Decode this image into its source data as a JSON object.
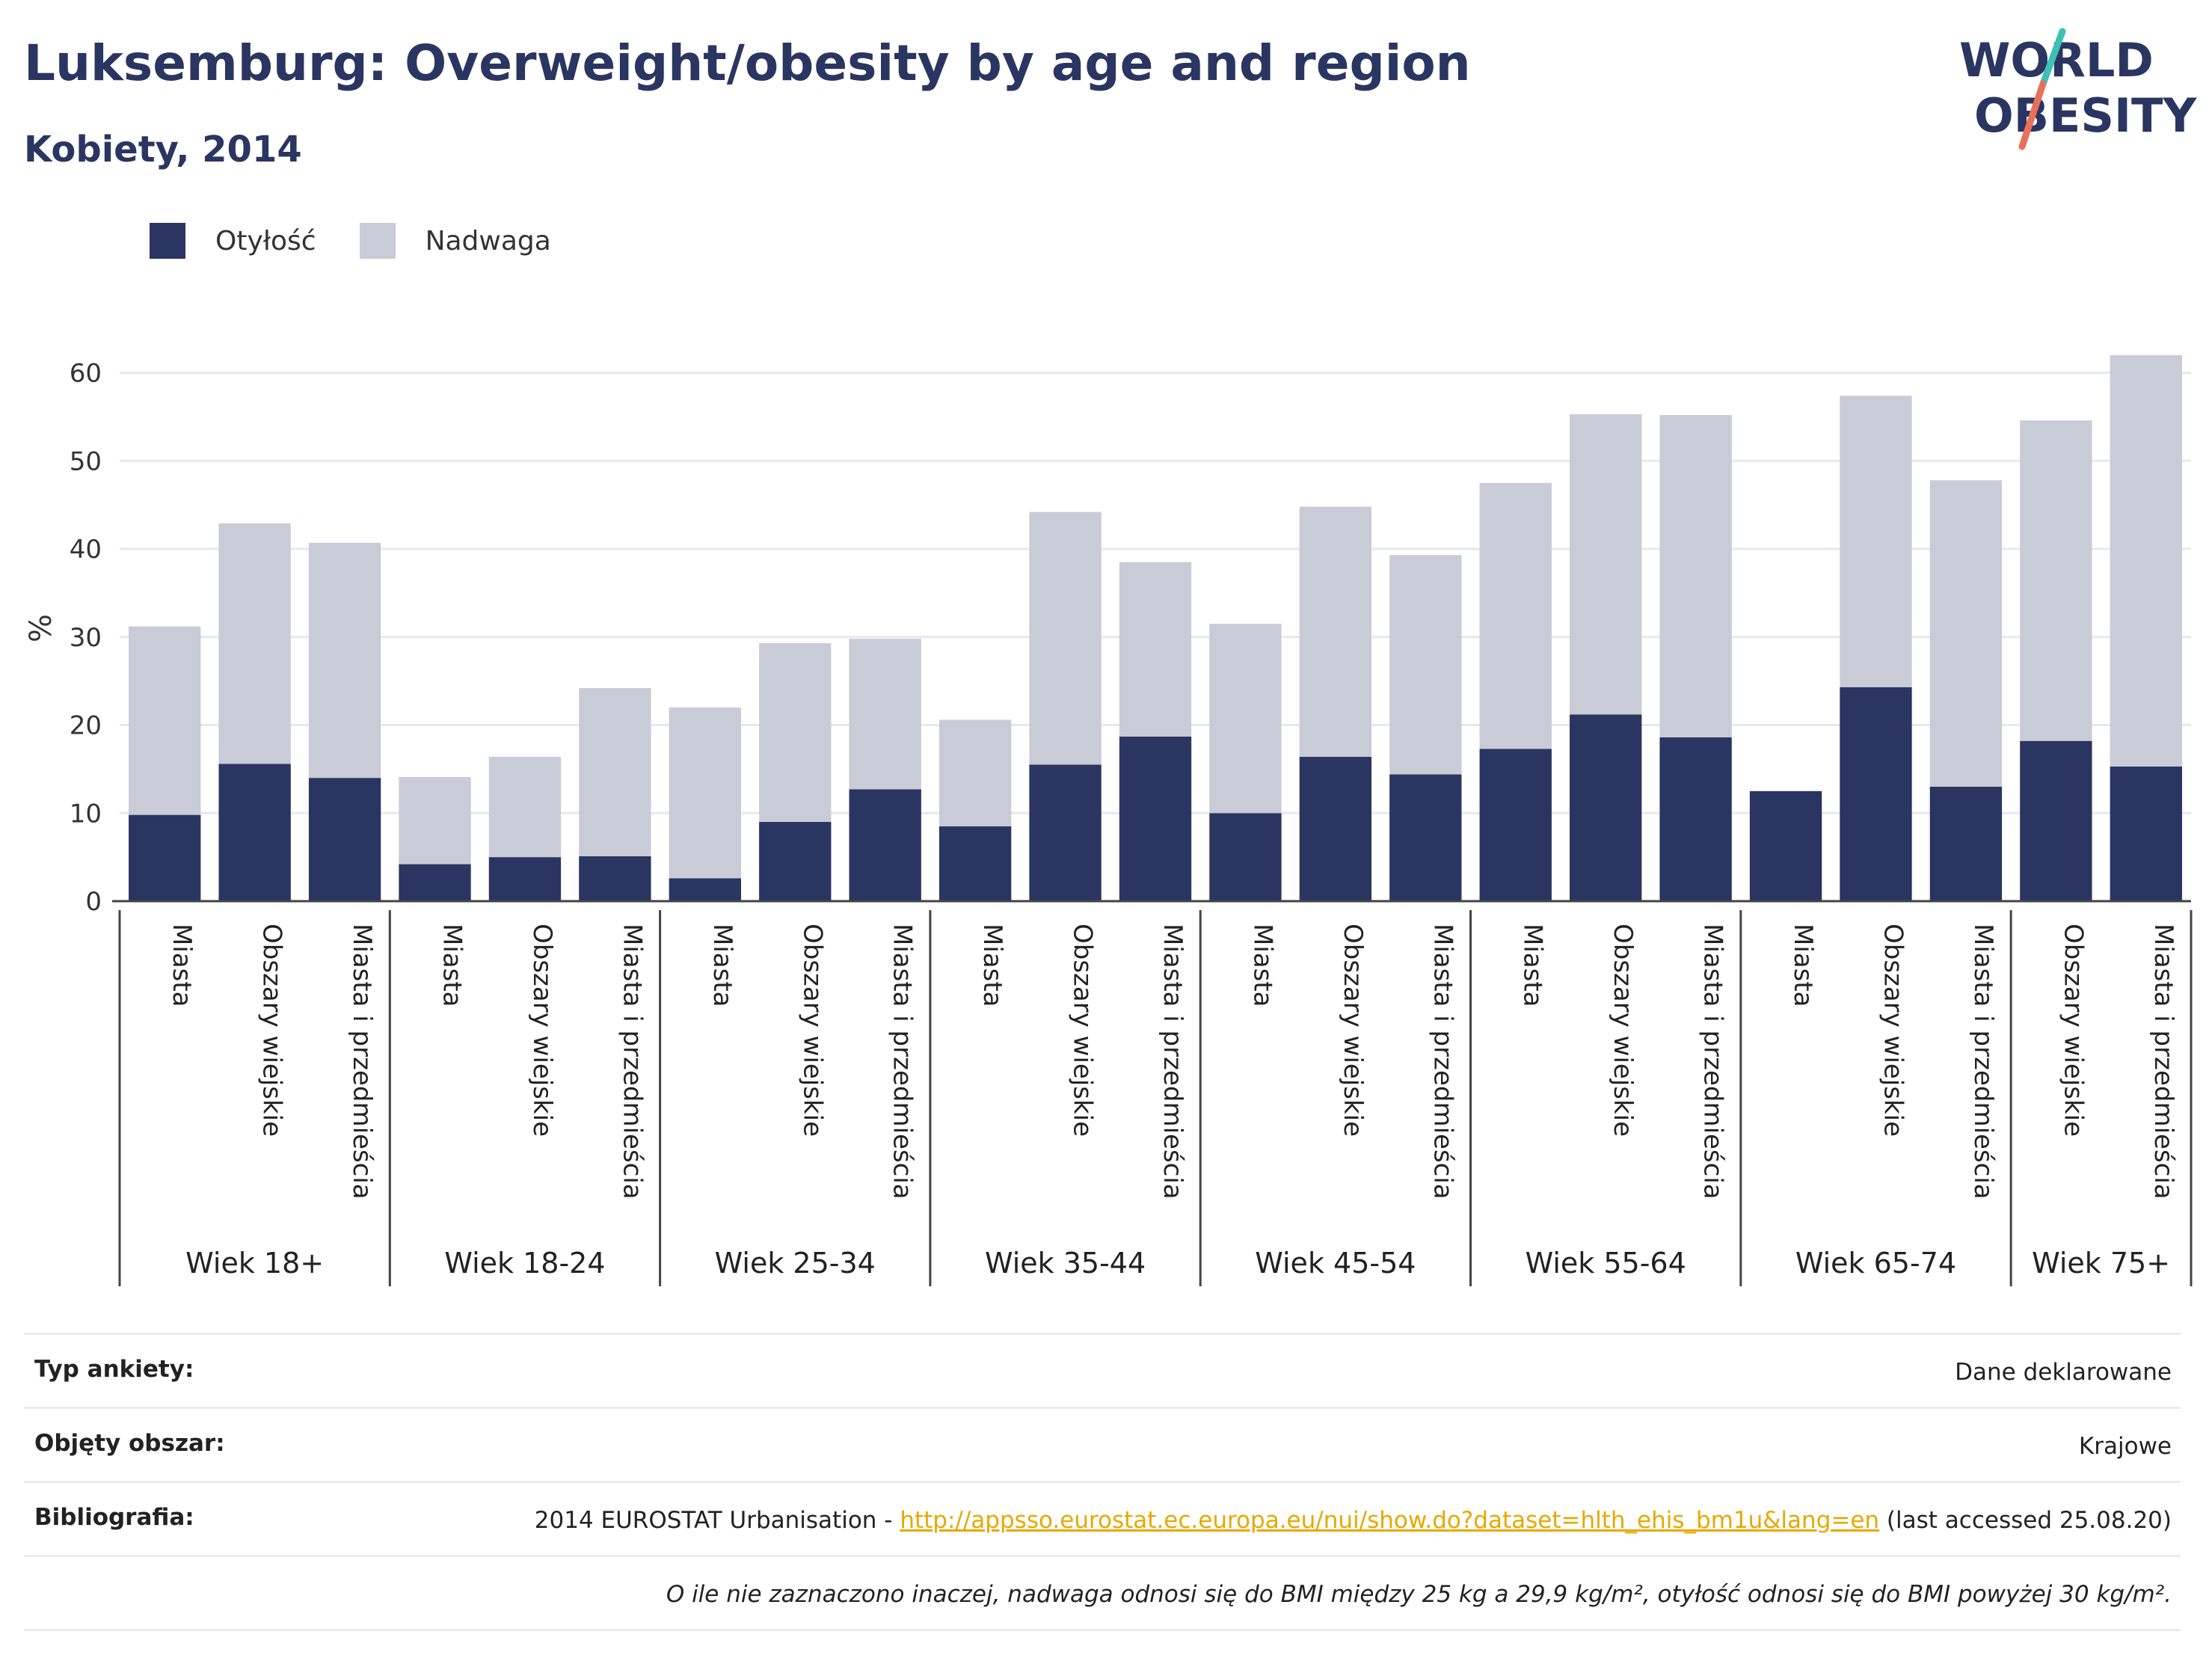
{
  "header": {
    "title": "Luksemburg: Overweight/obesity by age and region",
    "subtitle": "Kobiety, 2014"
  },
  "logo": {
    "line1": "WORLD",
    "line2": "OBESITY"
  },
  "legend": [
    {
      "label": "Otyłość",
      "color": "#2b3561"
    },
    {
      "label": "Nadwaga",
      "color": "#c9cbd6"
    }
  ],
  "chart_data": {
    "type": "bar",
    "stacked": true,
    "ylabel": "%",
    "ylim": [
      0,
      62
    ],
    "yticks": [
      0,
      10,
      20,
      30,
      40,
      50,
      60
    ],
    "grid": true,
    "legend_position": "top-left",
    "groups": [
      {
        "label": "Wiek 18+",
        "categories": [
          "Miasta",
          "Obszary wiejskie",
          "Miasta i przedmieścia"
        ]
      },
      {
        "label": "Wiek 18-24",
        "categories": [
          "Miasta",
          "Obszary wiejskie",
          "Miasta i przedmieścia"
        ]
      },
      {
        "label": "Wiek 25-34",
        "categories": [
          "Miasta",
          "Obszary wiejskie",
          "Miasta i przedmieścia"
        ]
      },
      {
        "label": "Wiek 35-44",
        "categories": [
          "Miasta",
          "Obszary wiejskie",
          "Miasta i przedmieścia"
        ]
      },
      {
        "label": "Wiek 45-54",
        "categories": [
          "Miasta",
          "Obszary wiejskie",
          "Miasta i przedmieścia"
        ]
      },
      {
        "label": "Wiek 55-64",
        "categories": [
          "Miasta",
          "Obszary wiejskie",
          "Miasta i przedmieścia"
        ]
      },
      {
        "label": "Wiek 65-74",
        "categories": [
          "Miasta",
          "Obszary wiejskie",
          "Miasta i przedmieścia"
        ]
      },
      {
        "label": "Wiek 75+",
        "categories": [
          "Obszary wiejskie",
          "Miasta i przedmieścia"
        ]
      }
    ],
    "series": [
      {
        "name": "Otyłość",
        "color": "#2b3561",
        "values": [
          9.8,
          15.6,
          14.0,
          4.2,
          5.0,
          5.1,
          2.6,
          9.0,
          12.7,
          8.5,
          15.5,
          18.7,
          10.0,
          16.4,
          14.4,
          17.3,
          21.2,
          18.6,
          12.5,
          24.3,
          13.0,
          18.2,
          15.3
        ]
      },
      {
        "name": "Nadwaga",
        "color": "#c9cbd6",
        "values": [
          21.4,
          27.3,
          26.7,
          9.9,
          11.4,
          19.1,
          19.4,
          20.3,
          17.1,
          12.1,
          28.7,
          19.8,
          21.5,
          28.4,
          24.9,
          30.2,
          34.1,
          36.6,
          0,
          33.1,
          34.8,
          36.4,
          46.7
        ]
      }
    ]
  },
  "info": {
    "rows": [
      {
        "label": "Typ ankiety:",
        "value": "Dane deklarowane"
      },
      {
        "label": "Objęty obszar:",
        "value": "Krajowe"
      }
    ],
    "bibliography": {
      "label": "Bibliografia:",
      "prefix": "2014 EUROSTAT Urbanisation - ",
      "link": "http://appsso.eurostat.ec.europa.eu/nui/show.do?dataset=hlth_ehis_bm1u&lang=en",
      "suffix": " (last accessed 25.08.20)"
    },
    "note": "O ile nie zaznaczono inaczej, nadwaga odnosi się do BMI między 25 kg a 29,9 kg/m², otyłość odnosi się do BMI powyżej 30 kg/m²."
  }
}
